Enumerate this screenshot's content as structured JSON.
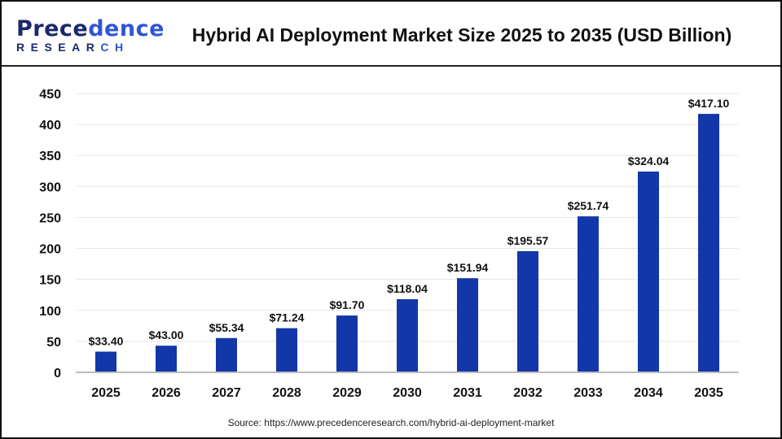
{
  "header": {
    "logo_text": "Precedence RESEARCH",
    "title": "Hybrid AI Deployment Market Size 2025 to 2035 (USD Billion)"
  },
  "source": "Source: https://www.precedenceresearch.com/hybrid-ai-deployment-market",
  "chart_data": {
    "type": "bar",
    "title": "Hybrid AI Deployment Market Size 2025 to 2035 (USD Billion)",
    "categories": [
      "2025",
      "2026",
      "2027",
      "2028",
      "2029",
      "2030",
      "2031",
      "2032",
      "2033",
      "2034",
      "2035"
    ],
    "values": [
      33.4,
      43.0,
      55.34,
      71.24,
      91.7,
      118.04,
      151.94,
      195.57,
      251.74,
      324.04,
      417.1
    ],
    "data_labels": [
      "$33.40",
      "$43.00",
      "$55.34",
      "$71.24",
      "$91.70",
      "$118.04",
      "$151.94",
      "$195.57",
      "$251.74",
      "$324.04",
      "$417.10"
    ],
    "ylim": [
      0,
      450
    ],
    "yticks": [
      0,
      50,
      100,
      150,
      200,
      250,
      300,
      350,
      400,
      450
    ],
    "grid": true,
    "bar_color": "#1237a8",
    "xlabel": "",
    "ylabel": ""
  }
}
